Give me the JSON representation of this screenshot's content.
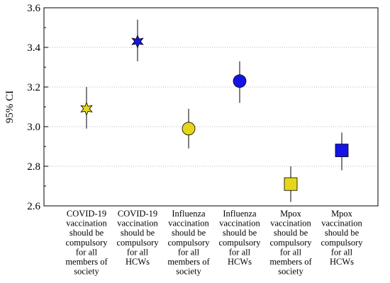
{
  "chart_data": {
    "type": "scatter",
    "ylabel": "95% CI",
    "ylim": [
      2.6,
      3.6
    ],
    "yticks": [
      "2.6",
      "2.8",
      "3.0",
      "3.2",
      "3.4",
      "3.6"
    ],
    "grid": "horizontal dotted",
    "categories": [
      [
        "COVID-19",
        "vaccination",
        "should be",
        "compulsory",
        "for all",
        "members of",
        "society"
      ],
      [
        "COVID-19",
        "vaccination",
        "should be",
        "compulsory",
        "for all",
        "HCWs"
      ],
      [
        "Influenza",
        "vaccination",
        "should be",
        "compulsory",
        "for all",
        "members of",
        "society"
      ],
      [
        "Influenza",
        "vaccination",
        "should be",
        "compulsory",
        "for all",
        "HCWs"
      ],
      [
        "Mpox",
        "vaccination",
        "should be",
        "compulsory",
        "for all",
        "members of",
        "society"
      ],
      [
        "Mpox",
        "vaccination",
        "should be",
        "compulsory",
        "for all",
        "HCWs"
      ]
    ],
    "points": [
      {
        "mean": 3.09,
        "low": 2.99,
        "high": 3.2,
        "marker": "star6",
        "color": "#e6d619"
      },
      {
        "mean": 3.43,
        "low": 3.33,
        "high": 3.54,
        "marker": "star6",
        "color": "#1414e6"
      },
      {
        "mean": 2.99,
        "low": 2.89,
        "high": 3.09,
        "marker": "circle",
        "color": "#e6d619"
      },
      {
        "mean": 3.23,
        "low": 3.12,
        "high": 3.33,
        "marker": "circle",
        "color": "#1414e6"
      },
      {
        "mean": 2.71,
        "low": 2.62,
        "high": 2.8,
        "marker": "square",
        "color": "#e6d619"
      },
      {
        "mean": 2.88,
        "low": 2.78,
        "high": 2.97,
        "marker": "square",
        "color": "#1414e6"
      }
    ]
  }
}
